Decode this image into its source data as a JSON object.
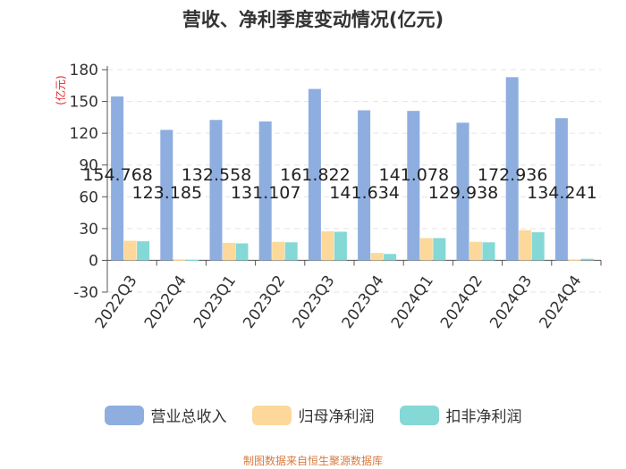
{
  "chart_data": {
    "type": "bar",
    "title": "营收、净利季度变动情况(亿元)",
    "ylabel": "(亿元)",
    "ylim": [
      -30,
      180
    ],
    "yticks": [
      "-30",
      "0",
      "30",
      "60",
      "90",
      "120",
      "150",
      "180"
    ],
    "grid": true,
    "legend_position": "bottom",
    "categories": [
      "2022Q3",
      "2022Q4",
      "2023Q1",
      "2023Q2",
      "2023Q3",
      "2023Q4",
      "2024Q1",
      "2024Q2",
      "2024Q3",
      "2024Q4"
    ],
    "series": [
      {
        "name": "营业总收入",
        "color": "#8eaee0",
        "values": [
          154.768,
          123.185,
          132.558,
          131.107,
          161.822,
          141.634,
          141.078,
          129.938,
          172.936,
          134.241
        ],
        "labels": [
          "154.768",
          "123.185",
          "132.558",
          "131.107",
          "161.822",
          "141.634",
          "141.078",
          "129.938",
          "172.936",
          "134.241"
        ]
      },
      {
        "name": "归母净利润",
        "color": "#fcd89a",
        "values": [
          18.5,
          0.3,
          16.5,
          17.5,
          27.5,
          7.0,
          21.0,
          17.5,
          28.5,
          0.5
        ]
      },
      {
        "name": "扣非净利润",
        "color": "#84d8d6",
        "values": [
          18.0,
          0.4,
          16.0,
          17.0,
          27.0,
          6.0,
          21.0,
          17.0,
          26.5,
          1.5
        ]
      }
    ]
  },
  "source_text": "制图数据来自恒生聚源数据库"
}
